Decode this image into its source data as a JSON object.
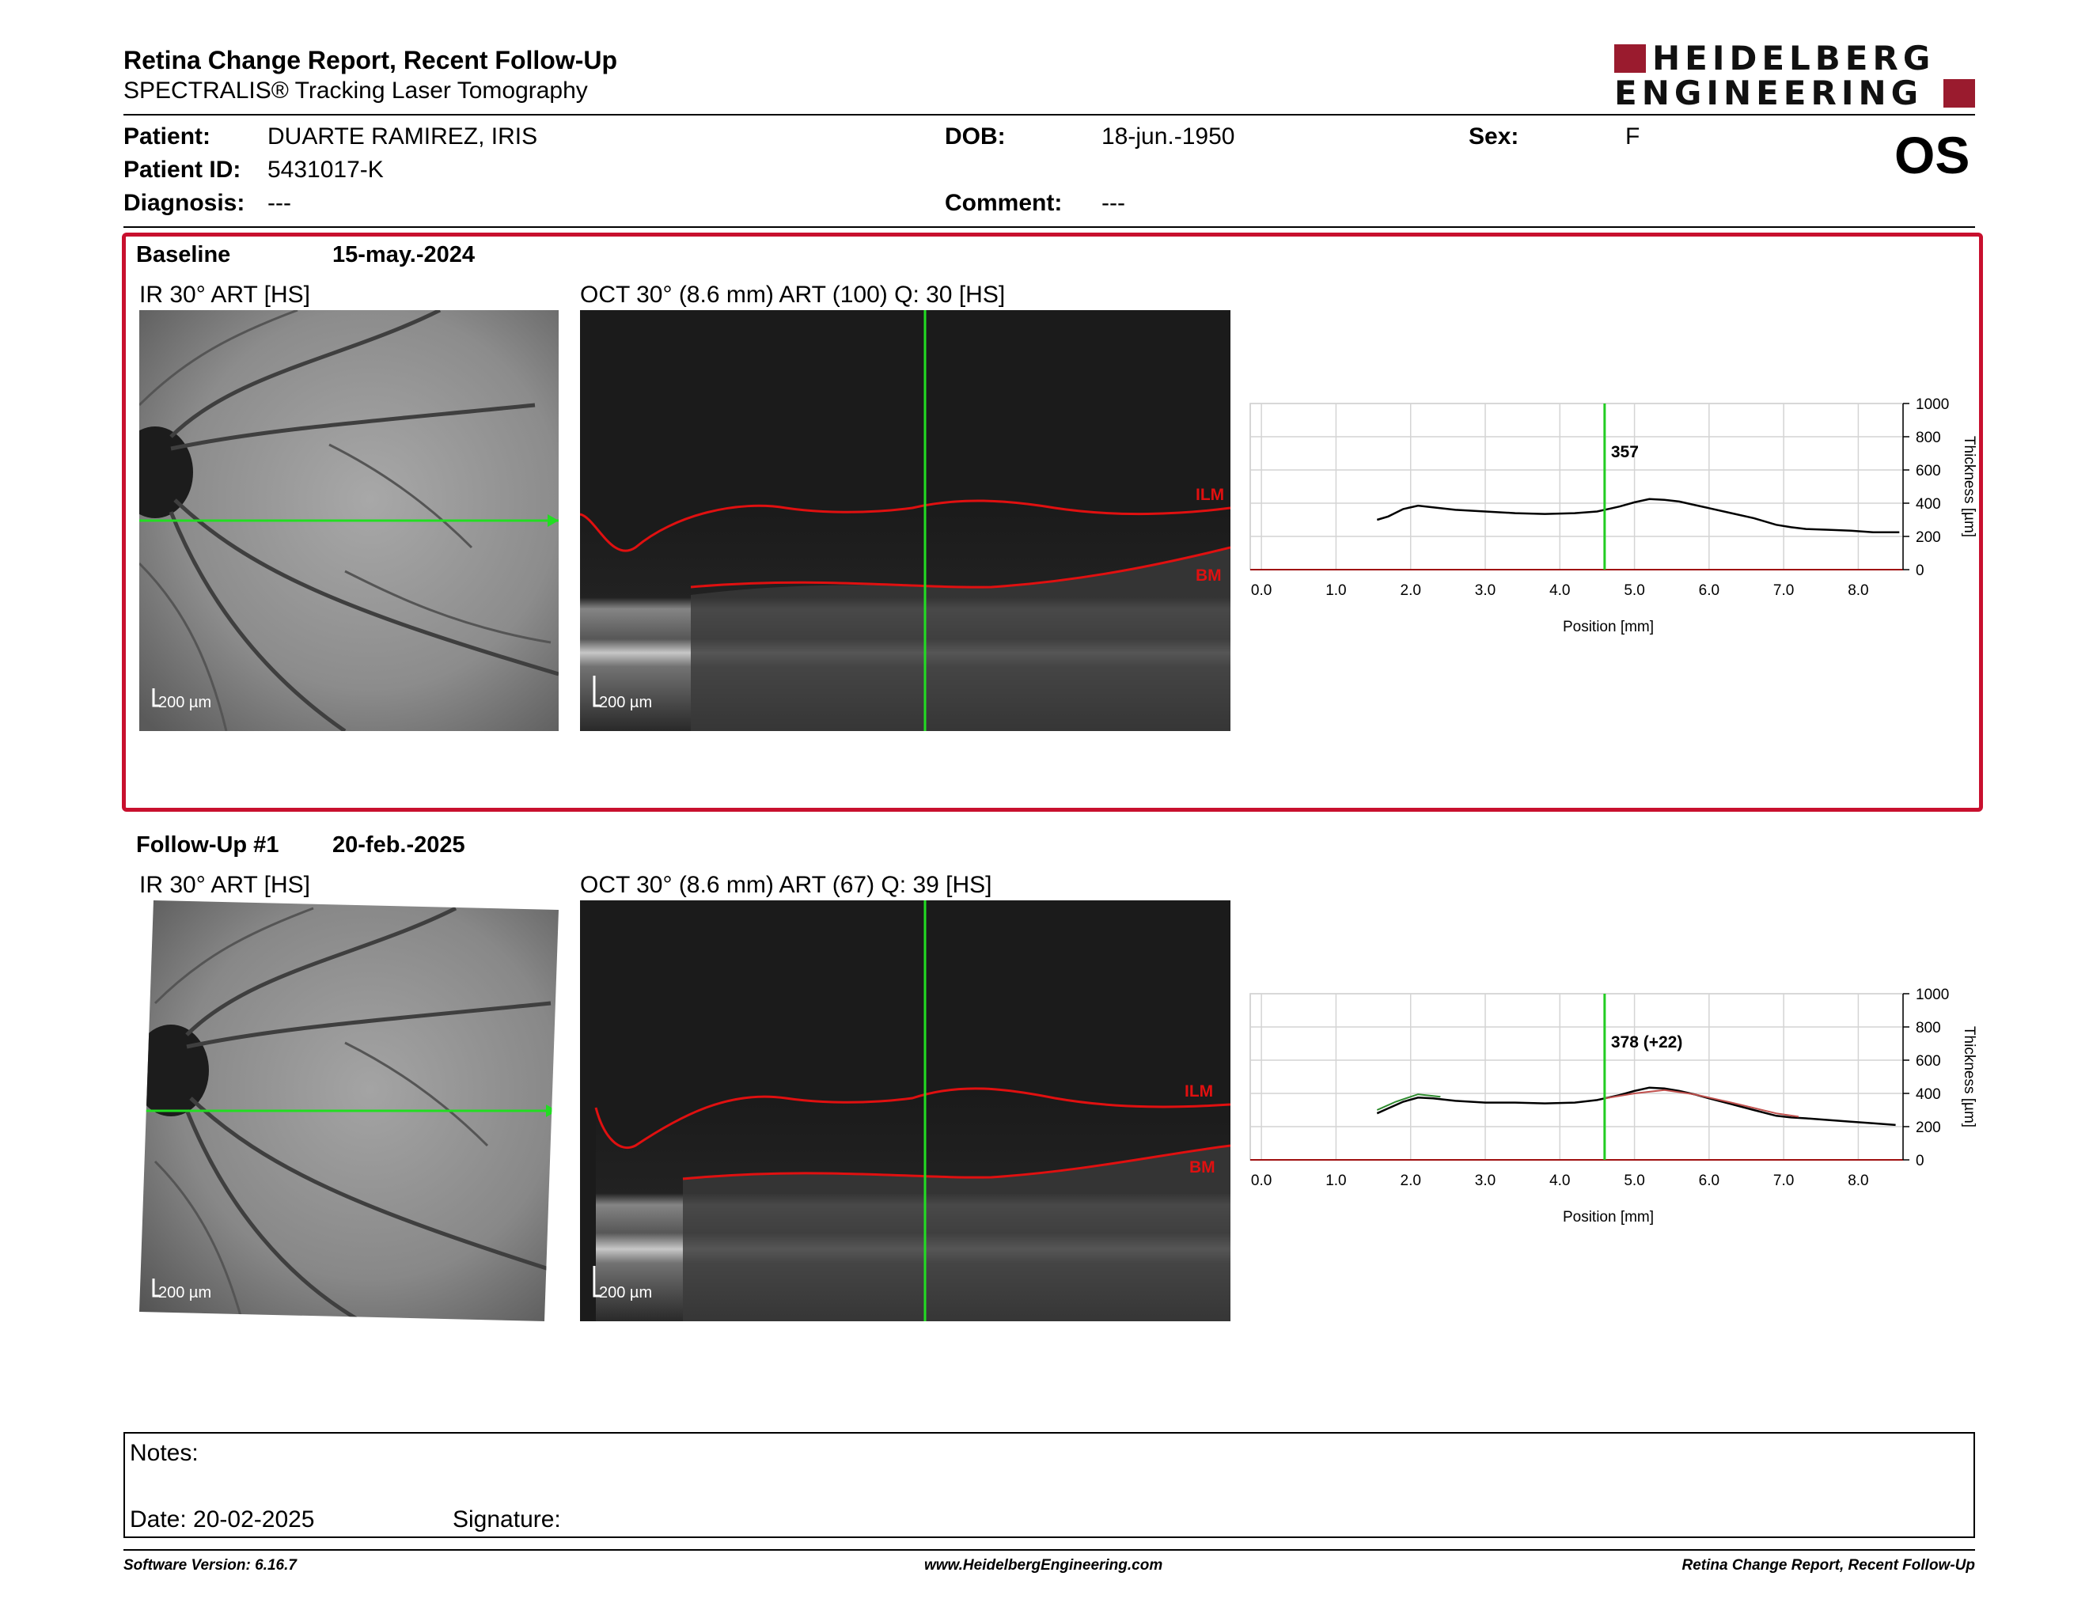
{
  "header": {
    "title": "Retina Change Report, Recent Follow-Up",
    "subtitle": "SPECTRALIS® Tracking Laser Tomography",
    "logo_top": "HEIDELBERG",
    "logo_bottom": "ENGINEERING",
    "logo_color": "#9a1b2e"
  },
  "patient": {
    "patient_label": "Patient:",
    "patient_value": "DUARTE RAMIREZ, IRIS",
    "id_label": "Patient ID:",
    "id_value": "5431017-K",
    "diagnosis_label": "Diagnosis:",
    "diagnosis_value": "---",
    "dob_label": "DOB:",
    "dob_value": "18-jun.-1950",
    "comment_label": "Comment:",
    "comment_value": "---",
    "sex_label": "Sex:",
    "sex_value": "F",
    "eye": "OS"
  },
  "baseline": {
    "label": "Baseline",
    "date": "15-may.-2024",
    "ir_title": "IR 30° ART [HS]",
    "oct_title": "OCT 30° (8.6 mm) ART (100) Q: 30 [HS]",
    "ir_scale": "200 µm",
    "oct_scale": "200 µm",
    "ilm_label": "ILM",
    "bm_label": "BM",
    "cursor_value": "357"
  },
  "followup": {
    "label": "Follow-Up #1",
    "date": "20-feb.-2025",
    "ir_title": "IR 30° ART [HS]",
    "oct_title": "OCT 30° (8.6 mm) ART (67) Q: 39 [HS]",
    "ir_scale": "200 µm",
    "oct_scale": "200 µm",
    "ilm_label": "ILM",
    "bm_label": "BM",
    "cursor_value": "378 (+22)"
  },
  "chart_data": [
    {
      "type": "line",
      "xlabel": "Position [mm]",
      "ylabel": "Thickness [µm]",
      "xlim": [
        -0.15,
        8.6
      ],
      "ylim": [
        0,
        1000
      ],
      "x_ticks": [
        "0.0",
        "1.0",
        "2.0",
        "3.0",
        "4.0",
        "5.0",
        "6.0",
        "7.0",
        "8.0"
      ],
      "y_ticks": [
        "0",
        "200",
        "400",
        "600",
        "800",
        "1000"
      ],
      "grid": true,
      "cursor_x": 4.6,
      "cursor_label": "357",
      "series": [
        {
          "color": "#000000",
          "x": [
            1.55,
            1.7,
            1.9,
            2.1,
            2.3,
            2.6,
            3.0,
            3.4,
            3.8,
            4.2,
            4.5,
            4.8,
            5.0,
            5.2,
            5.4,
            5.6,
            5.8,
            6.0,
            6.3,
            6.6,
            6.9,
            7.1,
            7.3,
            7.6,
            7.9,
            8.2,
            8.55
          ],
          "y": [
            300,
            320,
            365,
            385,
            375,
            360,
            350,
            340,
            335,
            340,
            350,
            380,
            405,
            425,
            420,
            410,
            390,
            370,
            340,
            310,
            270,
            255,
            245,
            240,
            235,
            225,
            225
          ]
        }
      ]
    },
    {
      "type": "line",
      "xlabel": "Position [mm]",
      "ylabel": "Thickness [µm]",
      "xlim": [
        -0.15,
        8.6
      ],
      "ylim": [
        0,
        1000
      ],
      "x_ticks": [
        "0.0",
        "1.0",
        "2.0",
        "3.0",
        "4.0",
        "5.0",
        "6.0",
        "7.0",
        "8.0"
      ],
      "y_ticks": [
        "0",
        "200",
        "400",
        "600",
        "800",
        "1000"
      ],
      "grid": true,
      "cursor_x": 4.6,
      "cursor_label": "378 (+22)",
      "series": [
        {
          "color": "#000000",
          "x": [
            1.55,
            1.7,
            1.9,
            2.1,
            2.3,
            2.6,
            3.0,
            3.4,
            3.8,
            4.2,
            4.5,
            4.8,
            5.0,
            5.2,
            5.4,
            5.6,
            5.8,
            6.0,
            6.3,
            6.6,
            6.9,
            7.1,
            7.3,
            7.6,
            7.9,
            8.2,
            8.5
          ],
          "y": [
            280,
            310,
            350,
            375,
            370,
            355,
            345,
            345,
            340,
            345,
            360,
            390,
            415,
            435,
            430,
            415,
            395,
            370,
            335,
            300,
            265,
            255,
            250,
            240,
            230,
            220,
            210
          ]
        },
        {
          "color": "#2e8b2e",
          "x": [
            1.55,
            1.8,
            2.1,
            2.4
          ],
          "y": [
            300,
            350,
            395,
            380
          ]
        },
        {
          "color": "#c0504d",
          "x": [
            4.6,
            5.0,
            5.4,
            5.8,
            6.3,
            6.9,
            7.2
          ],
          "y": [
            370,
            400,
            420,
            395,
            345,
            280,
            260
          ]
        }
      ]
    }
  ],
  "notes": {
    "notes_label": "Notes:",
    "date_label": "Date: 20-02-2025",
    "signature_label": "Signature:"
  },
  "footer": {
    "left": "Software Version: 6.16.7",
    "center": "www.HeidelbergEngineering.com",
    "right": "Retina Change Report, Recent Follow-Up"
  }
}
